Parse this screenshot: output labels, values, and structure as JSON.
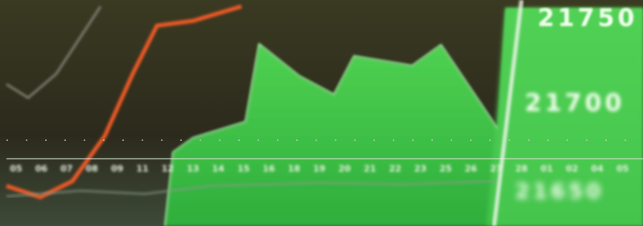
{
  "date_labels": [
    "05",
    "06",
    "07",
    "08",
    "09",
    "11",
    "12",
    "13",
    "14",
    "15",
    "16",
    "18",
    "19",
    "20",
    "21",
    "22",
    "23",
    "25",
    "26",
    "27",
    "28",
    "01",
    "02",
    "04",
    "05"
  ],
  "price_labels": [
    "21750",
    "21700",
    "21650"
  ]
}
